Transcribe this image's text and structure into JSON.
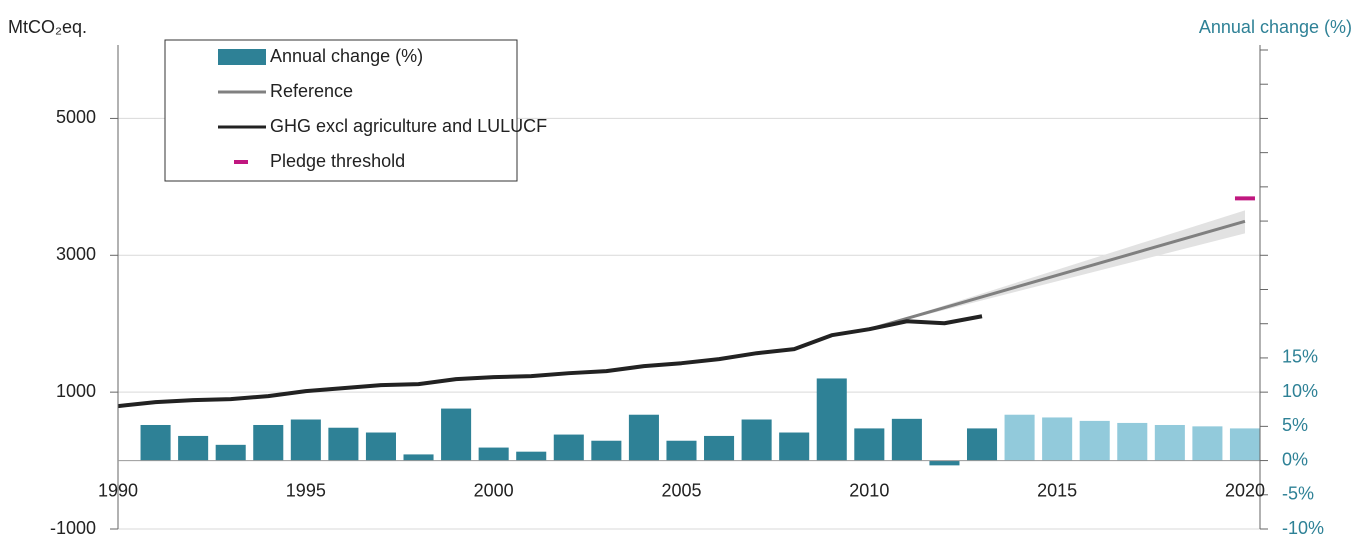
{
  "chart_data": {
    "type": "bar",
    "y_label": "MtCO₂eq.",
    "y2_label": "Annual change (%)",
    "xlim": [
      1990,
      2020.4
    ],
    "xticks": [
      1990,
      1995,
      2000,
      2005,
      2010,
      2015,
      2020
    ],
    "ylim": [
      -1000,
      6000
    ],
    "yticks": [
      -1000,
      1000,
      3000,
      5000
    ],
    "y2lim": [
      -10,
      60
    ],
    "y2ticks": [
      {
        "value": -10,
        "label": "-10%"
      },
      {
        "value": -5,
        "label": "-5%"
      },
      {
        "value": 0,
        "label": "0%"
      },
      {
        "value": 5,
        "label": "5%"
      },
      {
        "value": 10,
        "label": "10%"
      },
      {
        "value": 15,
        "label": "15%"
      }
    ],
    "y2minor_ticks": [
      20,
      25,
      30,
      35,
      40,
      45,
      50,
      55,
      60
    ],
    "grid": true,
    "series": [
      {
        "name": "Annual change (%)",
        "type": "bar",
        "axis": "y2",
        "color": "#2e8196",
        "x": [
          1991,
          1992,
          1993,
          1994,
          1995,
          1996,
          1997,
          1998,
          1999,
          2000,
          2001,
          2002,
          2003,
          2004,
          2005,
          2006,
          2007,
          2008,
          2009,
          2010,
          2011,
          2012,
          2013,
          2014,
          2015,
          2016,
          2017,
          2018,
          2019,
          2020
        ],
        "values": [
          5.2,
          3.6,
          2.3,
          5.2,
          6.0,
          4.8,
          4.1,
          0.9,
          7.6,
          1.9,
          1.3,
          3.8,
          2.9,
          6.7,
          2.9,
          3.6,
          6.0,
          4.1,
          12.0,
          4.7,
          6.1,
          -0.7,
          4.7,
          6.7,
          6.3,
          5.8,
          5.5,
          5.2,
          5.0,
          4.7
        ],
        "colors": [
          "#2e8196",
          "#2e8196",
          "#2e8196",
          "#2e8196",
          "#2e8196",
          "#2e8196",
          "#2e8196",
          "#2e8196",
          "#2e8196",
          "#2e8196",
          "#2e8196",
          "#2e8196",
          "#2e8196",
          "#2e8196",
          "#2e8196",
          "#2e8196",
          "#2e8196",
          "#2e8196",
          "#2e8196",
          "#2e8196",
          "#2e8196",
          "#2e8196",
          "#2e8196",
          "#92cadb",
          "#92cadb",
          "#92cadb",
          "#92cadb",
          "#92cadb",
          "#92cadb",
          "#92cadb"
        ]
      },
      {
        "name": "Reference",
        "type": "line",
        "color": "#808080",
        "x": [
          2010,
          2020
        ],
        "values": [
          1920,
          3496
        ],
        "band_lower": [
          1920,
          3321
        ],
        "band_upper": [
          1920,
          3657
        ],
        "band_color": "#e2e2e2"
      },
      {
        "name": "GHG excl agriculture and LULUCF",
        "type": "line",
        "color": "#222222",
        "x": [
          1990,
          1991,
          1992,
          1993,
          1994,
          1995,
          1996,
          1997,
          1998,
          1999,
          2000,
          2001,
          2002,
          2003,
          2004,
          2005,
          2006,
          2007,
          2008,
          2009,
          2010,
          2011,
          2012,
          2013
        ],
        "values": [
          796,
          854,
          883,
          898,
          942,
          1015,
          1058,
          1102,
          1117,
          1190,
          1219,
          1234,
          1277,
          1307,
          1380,
          1423,
          1482,
          1569,
          1628,
          1832,
          1920,
          2036,
          2007,
          2109
        ]
      },
      {
        "name": "Pledge threshold",
        "type": "dash",
        "color": "#c0177f",
        "x": [
          2020
        ],
        "values": [
          3832
        ]
      }
    ]
  }
}
